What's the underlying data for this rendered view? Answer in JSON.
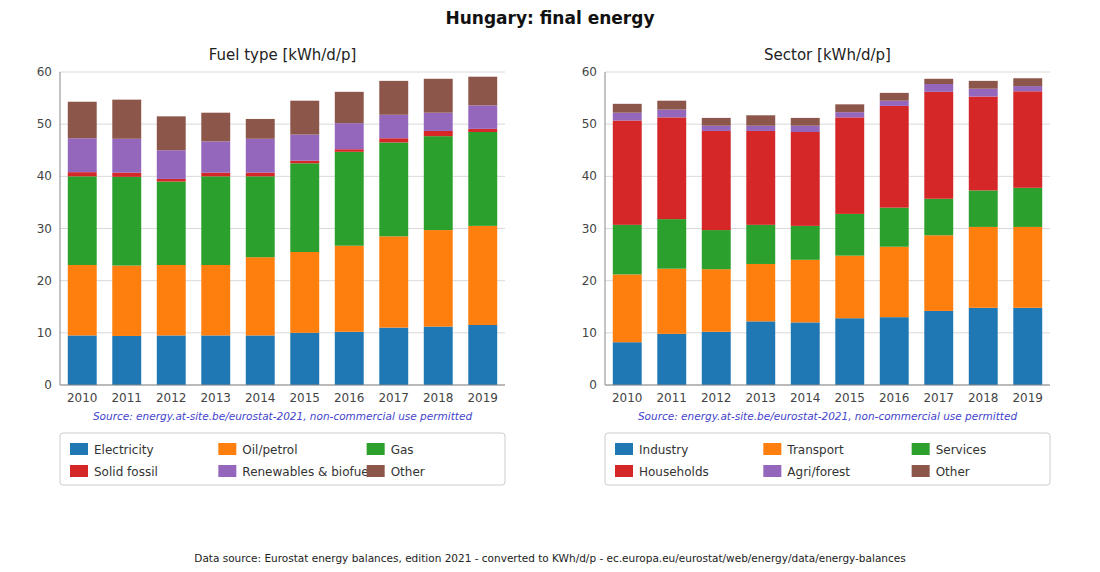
{
  "title": "Hungary: final energy",
  "annotations": [
    "Data source: Eurostat energy balances, edition 2021 - converted to KWh/d/p - ec.europa.eu/eurostat/web/energy/data/energy-balances"
  ],
  "chart_data": [
    {
      "type": "bar",
      "stacked": true,
      "grid": true,
      "legend": "bottom",
      "title": "Fuel type [kWh/d/p]",
      "annotations": [
        "Source: energy.at-site.be/eurostat-2021, non-commercial use permitted"
      ],
      "categories": [
        "2010",
        "2011",
        "2012",
        "2013",
        "2014",
        "2015",
        "2016",
        "2017",
        "2018",
        "2019"
      ],
      "ylim": [
        0,
        60
      ],
      "yticks": [
        0,
        10,
        20,
        30,
        40,
        50,
        60
      ],
      "series": [
        {
          "name": "Electricity",
          "color": "#1f77b4",
          "values": [
            9.5,
            9.4,
            9.5,
            9.5,
            9.5,
            10.0,
            10.2,
            11.0,
            11.2,
            11.5
          ]
        },
        {
          "name": "Oil/petrol",
          "color": "#ff7f0e",
          "values": [
            13.5,
            13.5,
            13.5,
            13.5,
            15.0,
            15.5,
            16.5,
            17.5,
            18.5,
            19.0
          ]
        },
        {
          "name": "Gas",
          "color": "#2ca02c",
          "values": [
            17.0,
            17.0,
            16.0,
            17.0,
            15.5,
            17.0,
            18.0,
            18.0,
            18.0,
            18.0
          ]
        },
        {
          "name": "Solid fossil",
          "color": "#d62728",
          "values": [
            0.8,
            0.8,
            0.5,
            0.7,
            0.7,
            0.5,
            0.5,
            0.8,
            1.0,
            0.6
          ]
        },
        {
          "name": "Renewables & biofuel",
          "color": "#9467bd",
          "values": [
            6.5,
            6.5,
            5.5,
            6.0,
            6.5,
            5.0,
            5.0,
            4.5,
            3.5,
            4.5
          ]
        },
        {
          "name": "Other",
          "color": "#8c564b",
          "values": [
            7.0,
            7.5,
            6.5,
            5.5,
            3.8,
            6.5,
            6.0,
            6.5,
            6.5,
            5.5
          ]
        }
      ]
    },
    {
      "type": "bar",
      "stacked": true,
      "grid": true,
      "legend": "bottom",
      "title": "Sector [kWh/d/p]",
      "annotations": [
        "Source: energy.at-site.be/eurostat-2021, non-commercial use permitted"
      ],
      "categories": [
        "2010",
        "2011",
        "2012",
        "2013",
        "2014",
        "2015",
        "2016",
        "2017",
        "2018",
        "2019"
      ],
      "ylim": [
        0,
        60
      ],
      "yticks": [
        0,
        10,
        20,
        30,
        40,
        50,
        60
      ],
      "series": [
        {
          "name": "Industry",
          "color": "#1f77b4",
          "values": [
            8.2,
            9.8,
            10.2,
            12.2,
            12.0,
            12.8,
            13.0,
            14.2,
            14.8,
            14.8
          ]
        },
        {
          "name": "Transport",
          "color": "#ff7f0e",
          "values": [
            13.0,
            12.5,
            12.0,
            11.0,
            12.0,
            12.0,
            13.5,
            14.5,
            15.5,
            15.5
          ]
        },
        {
          "name": "Services",
          "color": "#2ca02c",
          "values": [
            9.5,
            9.5,
            7.5,
            7.5,
            6.5,
            8.0,
            7.5,
            7.0,
            7.0,
            7.5
          ]
        },
        {
          "name": "Households",
          "color": "#d62728",
          "values": [
            20.0,
            19.5,
            19.0,
            18.0,
            18.0,
            18.5,
            19.5,
            20.5,
            18.0,
            18.5
          ]
        },
        {
          "name": "Agri/forest",
          "color": "#9467bd",
          "values": [
            1.5,
            1.5,
            1.0,
            1.0,
            1.2,
            1.0,
            1.0,
            1.5,
            1.5,
            1.0
          ]
        },
        {
          "name": "Other",
          "color": "#8c564b",
          "values": [
            1.7,
            1.7,
            1.5,
            2.0,
            1.5,
            1.5,
            1.5,
            1.0,
            1.5,
            1.5
          ]
        }
      ]
    }
  ]
}
